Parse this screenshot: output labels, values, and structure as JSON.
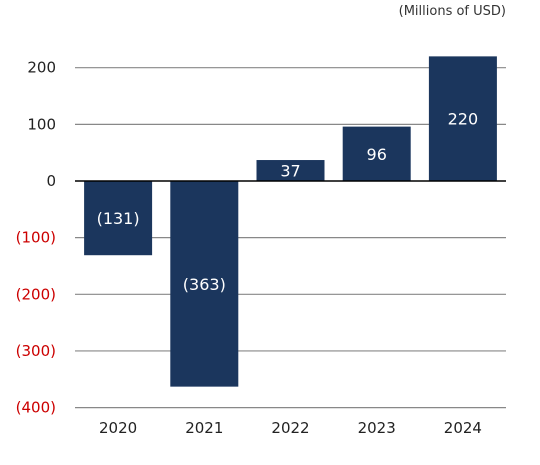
{
  "chart_data": {
    "type": "bar",
    "unit_label": "(Millions of USD)",
    "categories": [
      "2020",
      "2021",
      "2022",
      "2023",
      "2024"
    ],
    "values": [
      -131,
      -363,
      37,
      96,
      220
    ],
    "data_labels": [
      "(131)",
      "(363)",
      "37",
      "96",
      "220"
    ],
    "ylim": [
      -400,
      220
    ],
    "yticks": [
      200,
      100,
      0,
      -100,
      -200,
      -300,
      -400
    ],
    "ytick_labels": [
      "200",
      "100",
      "0",
      "(100)",
      "(200)",
      "(300)",
      "(400)"
    ],
    "grid": true,
    "colors": {
      "bar": "#1b365d",
      "positive_tick": "#222222",
      "negative_tick": "#cc0000",
      "grid": "#888888",
      "zero_line": "#000000"
    }
  }
}
